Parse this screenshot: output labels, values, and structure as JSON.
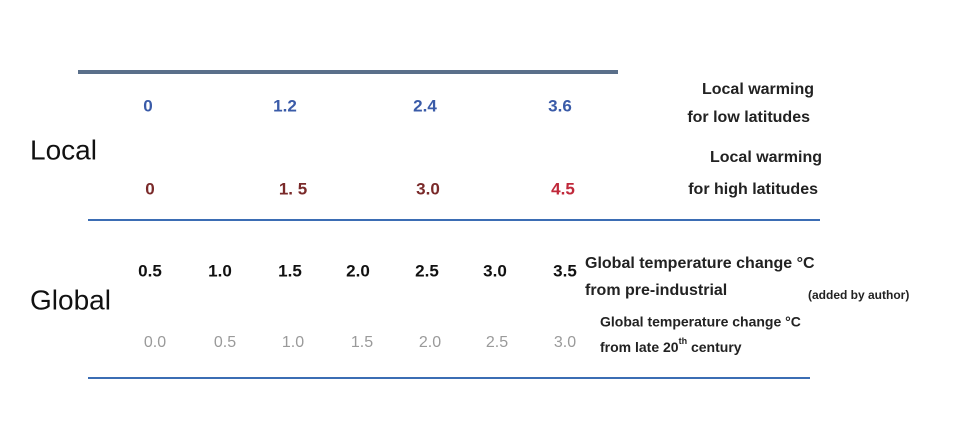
{
  "local": {
    "label": "Local",
    "low": {
      "values": [
        "0",
        "1.2",
        "2.4",
        "3.6"
      ],
      "label_line1": "Local warming",
      "label_line2": "for low latitudes"
    },
    "high": {
      "values": [
        "0",
        "1. 5",
        "3.0",
        "4.5"
      ],
      "label_line1": "Local warming",
      "label_line2": "for high latitudes"
    }
  },
  "global": {
    "label": "Global",
    "preindustrial": {
      "values": [
        "0.5",
        "1.0",
        "1.5",
        "2.0",
        "2.5",
        "3.0",
        "3.5"
      ],
      "label_line1": "Global temperature change °C",
      "label_line2": "from pre-industrial",
      "note": "(added by author)"
    },
    "late20th": {
      "values": [
        "0.0",
        "0.5",
        "1.0",
        "1.5",
        "2.0",
        "2.5",
        "3.0"
      ],
      "label_line1": "Global temperature change °C",
      "label_line2_start": "from late 20",
      "label_line2_sup": "th",
      "label_line2_end": " century"
    }
  }
}
